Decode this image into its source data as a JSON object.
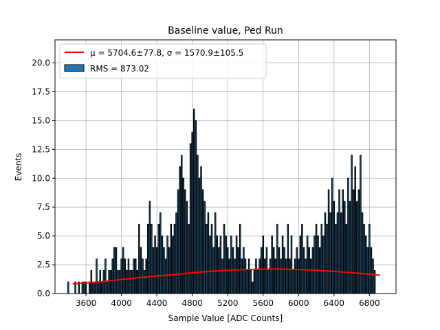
{
  "chart_data": {
    "type": "bar",
    "title": "Baseline value, Ped Run",
    "xlabel": "Sample Value [ADC Counts]",
    "ylabel": "Events",
    "xlim": [
      3250,
      7100
    ],
    "ylim": [
      0,
      22
    ],
    "xticks": [
      3600,
      4000,
      4400,
      4800,
      5200,
      5600,
      6000,
      6400,
      6800
    ],
    "yticks": [
      0.0,
      2.5,
      5.0,
      7.5,
      10.0,
      12.5,
      15.0,
      17.5,
      20.0
    ],
    "grid": true,
    "legend_position": "top-left",
    "bin_width": 12,
    "bins": [
      [
        3400,
        1
      ],
      [
        3480,
        1
      ],
      [
        3520,
        1
      ],
      [
        3560,
        1
      ],
      [
        3580,
        1
      ],
      [
        3600,
        1
      ],
      [
        3640,
        1
      ],
      [
        3660,
        2
      ],
      [
        3680,
        1
      ],
      [
        3700,
        1
      ],
      [
        3720,
        3
      ],
      [
        3740,
        1
      ],
      [
        3760,
        2
      ],
      [
        3780,
        1
      ],
      [
        3800,
        2
      ],
      [
        3820,
        3
      ],
      [
        3840,
        1
      ],
      [
        3860,
        2
      ],
      [
        3880,
        2
      ],
      [
        3900,
        3
      ],
      [
        3920,
        4
      ],
      [
        3940,
        4
      ],
      [
        3960,
        2
      ],
      [
        3980,
        2
      ],
      [
        4000,
        3
      ],
      [
        4020,
        4
      ],
      [
        4040,
        3
      ],
      [
        4060,
        2
      ],
      [
        4080,
        3
      ],
      [
        4100,
        2
      ],
      [
        4120,
        2
      ],
      [
        4140,
        3
      ],
      [
        4160,
        3
      ],
      [
        4180,
        2
      ],
      [
        4200,
        6
      ],
      [
        4220,
        4
      ],
      [
        4240,
        3
      ],
      [
        4260,
        2
      ],
      [
        4280,
        3
      ],
      [
        4300,
        6
      ],
      [
        4320,
        8
      ],
      [
        4340,
        6
      ],
      [
        4360,
        4
      ],
      [
        4380,
        5
      ],
      [
        4400,
        4
      ],
      [
        4420,
        6
      ],
      [
        4440,
        7
      ],
      [
        4460,
        5
      ],
      [
        4480,
        4
      ],
      [
        4500,
        3
      ],
      [
        4520,
        5
      ],
      [
        4540,
        4
      ],
      [
        4560,
        6
      ],
      [
        4580,
        5
      ],
      [
        4600,
        6
      ],
      [
        4620,
        7
      ],
      [
        4640,
        9
      ],
      [
        4660,
        11
      ],
      [
        4680,
        12
      ],
      [
        4700,
        10
      ],
      [
        4720,
        9
      ],
      [
        4740,
        8
      ],
      [
        4760,
        6
      ],
      [
        4780,
        13
      ],
      [
        4800,
        14
      ],
      [
        4820,
        16
      ],
      [
        4840,
        15
      ],
      [
        4860,
        12
      ],
      [
        4880,
        10
      ],
      [
        4900,
        11
      ],
      [
        4920,
        9
      ],
      [
        4940,
        8
      ],
      [
        4960,
        6
      ],
      [
        4980,
        7
      ],
      [
        5000,
        5
      ],
      [
        5020,
        6
      ],
      [
        5040,
        4
      ],
      [
        5060,
        7
      ],
      [
        5080,
        5
      ],
      [
        5100,
        4
      ],
      [
        5120,
        5
      ],
      [
        5140,
        3
      ],
      [
        5160,
        6
      ],
      [
        5180,
        5
      ],
      [
        5200,
        4
      ],
      [
        5220,
        3
      ],
      [
        5240,
        5
      ],
      [
        5260,
        4
      ],
      [
        5280,
        3
      ],
      [
        5300,
        5
      ],
      [
        5320,
        4
      ],
      [
        5340,
        6
      ],
      [
        5360,
        3
      ],
      [
        5380,
        4
      ],
      [
        5400,
        3
      ],
      [
        5420,
        2
      ],
      [
        5440,
        3
      ],
      [
        5460,
        2
      ],
      [
        5480,
        1
      ],
      [
        5500,
        2
      ],
      [
        5520,
        3
      ],
      [
        5540,
        2
      ],
      [
        5560,
        3
      ],
      [
        5580,
        4
      ],
      [
        5600,
        5
      ],
      [
        5620,
        3
      ],
      [
        5640,
        4
      ],
      [
        5660,
        2
      ],
      [
        5680,
        3
      ],
      [
        5700,
        5
      ],
      [
        5720,
        4
      ],
      [
        5740,
        3
      ],
      [
        5760,
        6
      ],
      [
        5780,
        4
      ],
      [
        5800,
        3
      ],
      [
        5820,
        5
      ],
      [
        5840,
        4
      ],
      [
        5860,
        3
      ],
      [
        5880,
        6
      ],
      [
        5900,
        3
      ],
      [
        5920,
        5
      ],
      [
        5940,
        2
      ],
      [
        5960,
        3
      ],
      [
        5980,
        4
      ],
      [
        6000,
        3
      ],
      [
        6020,
        5
      ],
      [
        6040,
        6
      ],
      [
        6060,
        4
      ],
      [
        6080,
        3
      ],
      [
        6100,
        5
      ],
      [
        6120,
        4
      ],
      [
        6140,
        3
      ],
      [
        6160,
        4
      ],
      [
        6180,
        5
      ],
      [
        6200,
        6
      ],
      [
        6220,
        5
      ],
      [
        6240,
        4
      ],
      [
        6260,
        6
      ],
      [
        6280,
        5
      ],
      [
        6300,
        7
      ],
      [
        6320,
        6
      ],
      [
        6340,
        9
      ],
      [
        6360,
        7
      ],
      [
        6380,
        10
      ],
      [
        6400,
        8
      ],
      [
        6420,
        6
      ],
      [
        6440,
        7
      ],
      [
        6460,
        9
      ],
      [
        6480,
        7
      ],
      [
        6500,
        9
      ],
      [
        6520,
        8
      ],
      [
        6540,
        6
      ],
      [
        6560,
        10
      ],
      [
        6580,
        8
      ],
      [
        6600,
        12
      ],
      [
        6620,
        9
      ],
      [
        6640,
        11
      ],
      [
        6660,
        8
      ],
      [
        6680,
        9
      ],
      [
        6700,
        12
      ],
      [
        6720,
        7
      ],
      [
        6740,
        6
      ],
      [
        6760,
        5
      ],
      [
        6780,
        4
      ],
      [
        6800,
        6
      ],
      [
        6820,
        4
      ],
      [
        6840,
        3
      ],
      [
        6860,
        2
      ]
    ],
    "fit_curve": {
      "x": [
        3450,
        3600,
        3800,
        4000,
        4200,
        4400,
        4600,
        4800,
        5000,
        5200,
        5400,
        5600,
        5800,
        6000,
        6200,
        6400,
        6600,
        6800,
        6920
      ],
      "y": [
        0.85,
        0.92,
        1.05,
        1.22,
        1.38,
        1.52,
        1.65,
        1.8,
        1.92,
        2.02,
        2.08,
        2.12,
        2.12,
        2.08,
        2.02,
        1.92,
        1.8,
        1.68,
        1.58
      ],
      "color": "#ff0000"
    },
    "legend": [
      {
        "label": "μ = 5704.6±77.8, σ = 1570.9±105.5",
        "kind": "line",
        "color": "#ff0000"
      },
      {
        "label": "RMS = 873.02",
        "kind": "patch",
        "color": "#1f77b4"
      }
    ]
  }
}
